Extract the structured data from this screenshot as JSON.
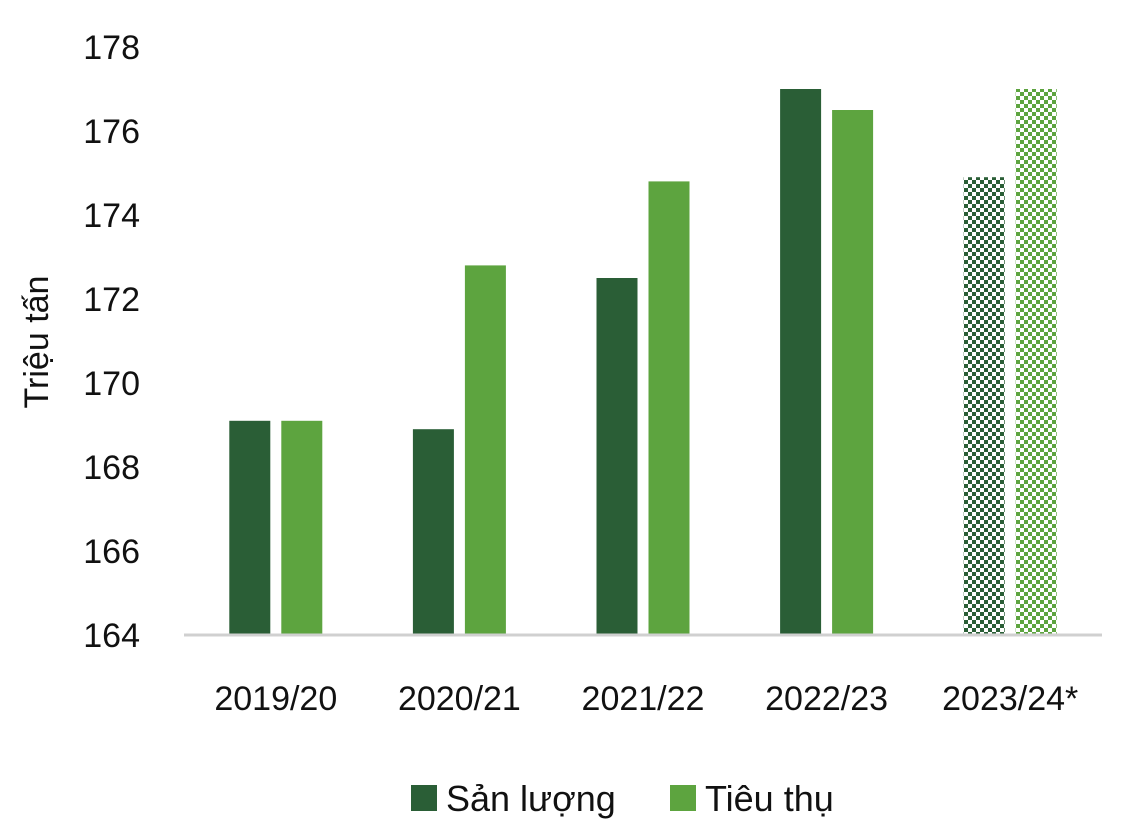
{
  "chart_data": {
    "type": "bar",
    "categories": [
      "2019/20",
      "2020/21",
      "2021/22",
      "2022/23",
      "2023/24*"
    ],
    "series": [
      {
        "name": "Sản lượng",
        "values": [
          169.1,
          168.9,
          172.5,
          177.0,
          174.9
        ],
        "color": "#2a5e36"
      },
      {
        "name": "Tiêu thụ",
        "values": [
          169.1,
          172.8,
          174.8,
          176.5,
          177.0
        ],
        "color": "#5da43f"
      }
    ],
    "hatched_categories": [
      "2023/24*"
    ],
    "title": "",
    "xlabel": "",
    "ylabel": "Triệu tấn",
    "ylim": [
      164,
      178
    ],
    "yticks": [
      164,
      166,
      168,
      170,
      172,
      174,
      176,
      178
    ],
    "grid": false,
    "legend": "bottom-center"
  }
}
